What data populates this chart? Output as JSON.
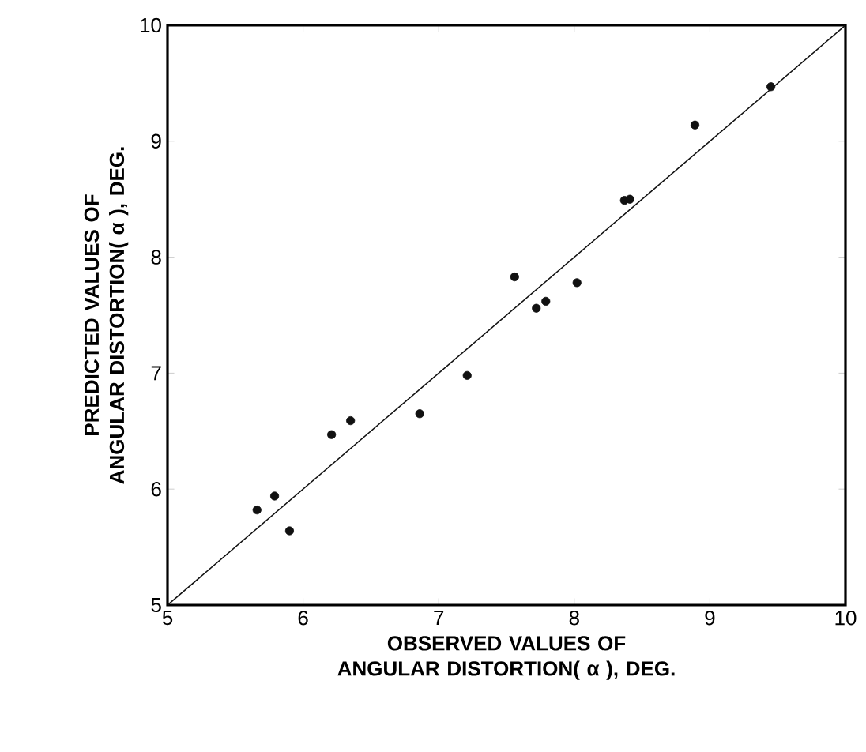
{
  "chart_data": {
    "type": "scatter",
    "xlabel": "OBSERVED VALUES OF ANGULAR DISTORTION( α ), DEG.",
    "ylabel": "PREDICTED VALUES OF ANGULAR DISTORTION( α ), DEG.",
    "xlim": [
      5,
      10
    ],
    "ylim": [
      5,
      10
    ],
    "xticks": [
      5,
      6,
      7,
      8,
      9,
      10
    ],
    "yticks": [
      5,
      6,
      7,
      8,
      9,
      10
    ],
    "grid": false,
    "series": [
      {
        "color": "#111111",
        "marker": "circle",
        "x": [
          5.66,
          5.79,
          5.9,
          6.21,
          6.35,
          6.86,
          7.21,
          7.56,
          7.72,
          7.79,
          8.02,
          8.37,
          8.41,
          8.89,
          9.45
        ],
        "values": [
          5.82,
          5.94,
          5.64,
          6.47,
          6.59,
          6.65,
          6.98,
          7.83,
          7.56,
          7.62,
          7.78,
          8.49,
          8.5,
          9.14,
          9.47
        ]
      },
      {
        "type": "line",
        "color": "#111111",
        "x": [
          5,
          10
        ],
        "values": [
          5,
          10
        ],
        "marker": "none",
        "line_style": "solid"
      }
    ]
  }
}
